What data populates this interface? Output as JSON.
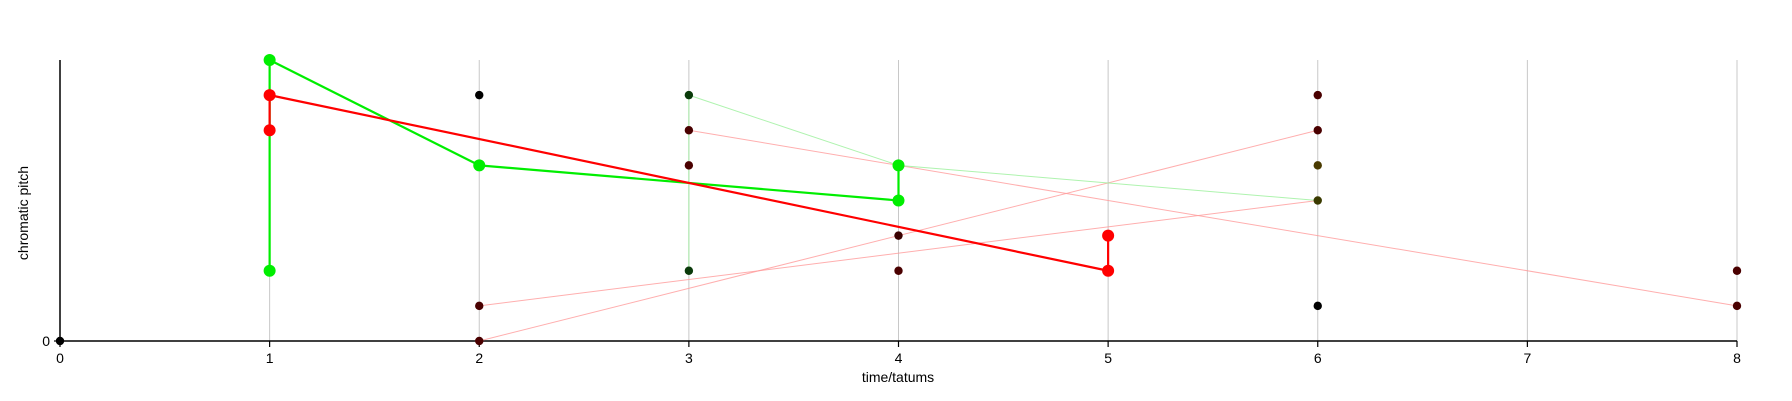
{
  "chart_data": {
    "type": "scatter",
    "xlabel": "time/tatums",
    "ylabel": "chromatic pitch",
    "xlim": [
      0,
      8
    ],
    "ylim": [
      0,
      8
    ],
    "x_ticks": [
      0,
      1,
      2,
      3,
      4,
      5,
      6,
      7,
      8
    ],
    "y_ticks": [
      0
    ],
    "grid": "vertical",
    "colors": {
      "green": "#00ee00",
      "red": "#ff0000",
      "faint_green": "#b8f5b8",
      "faint_red": "#ffbcbc",
      "dark_dot": "#1a0000",
      "dark_red_dot": "#550000",
      "dark_green_dot": "#003300",
      "dark_olive_dot": "#4a3a00"
    },
    "dark_points": [
      {
        "x": 0,
        "y": 0,
        "color": "#000000"
      },
      {
        "x": 2,
        "y": 7,
        "color": "#000000"
      },
      {
        "x": 2,
        "y": 1,
        "color": "#4a0000"
      },
      {
        "x": 2,
        "y": 0,
        "color": "#4a0000"
      },
      {
        "x": 3,
        "y": 7,
        "color": "#0a3a0a"
      },
      {
        "x": 3,
        "y": 6,
        "color": "#4a0000"
      },
      {
        "x": 3,
        "y": 5,
        "color": "#4a0000"
      },
      {
        "x": 3,
        "y": 2,
        "color": "#0a3a0a"
      },
      {
        "x": 4,
        "y": 3,
        "color": "#3a0000"
      },
      {
        "x": 4,
        "y": 2,
        "color": "#4a0000"
      },
      {
        "x": 6,
        "y": 7,
        "color": "#4a0000"
      },
      {
        "x": 6,
        "y": 6,
        "color": "#4a0000"
      },
      {
        "x": 6,
        "y": 5,
        "color": "#4a3a00"
      },
      {
        "x": 6,
        "y": 4,
        "color": "#3a3a00"
      },
      {
        "x": 6,
        "y": 1,
        "color": "#000000"
      },
      {
        "x": 8,
        "y": 2,
        "color": "#4a0000"
      },
      {
        "x": 8,
        "y": 1,
        "color": "#4a0000"
      }
    ],
    "faint_lines": [
      {
        "color": "#ff9a9a",
        "points": [
          [
            2,
            1
          ],
          [
            6,
            4
          ]
        ]
      },
      {
        "color": "#ff9a9a",
        "points": [
          [
            2,
            0
          ],
          [
            6,
            6
          ]
        ]
      },
      {
        "color": "#ff9a9a",
        "points": [
          [
            3,
            6
          ],
          [
            8,
            1
          ]
        ]
      },
      {
        "color": "#9af09a",
        "points": [
          [
            3,
            7
          ],
          [
            4,
            5
          ],
          [
            6,
            4
          ]
        ]
      },
      {
        "color": "#9af09a",
        "points": [
          [
            3,
            7
          ],
          [
            3,
            2
          ]
        ]
      }
    ],
    "series": [
      {
        "color": "#00ee00",
        "segments": [
          [
            [
              1,
              2
            ],
            [
              1,
              8
            ]
          ],
          [
            [
              1,
              8
            ],
            [
              2,
              5
            ],
            [
              4,
              4
            ]
          ],
          [
            [
              4,
              4
            ],
            [
              4,
              5
            ]
          ]
        ],
        "points": [
          [
            1,
            8
          ],
          [
            1,
            2
          ],
          [
            2,
            5
          ],
          [
            4,
            5
          ],
          [
            4,
            4
          ]
        ]
      },
      {
        "color": "#ff0000",
        "segments": [
          [
            [
              1,
              6
            ],
            [
              1,
              7
            ]
          ],
          [
            [
              1,
              7
            ],
            [
              5,
              2
            ]
          ],
          [
            [
              5,
              2
            ],
            [
              5,
              3
            ]
          ]
        ],
        "points": [
          [
            1,
            7
          ],
          [
            1,
            6
          ],
          [
            5,
            3
          ],
          [
            5,
            2
          ]
        ]
      }
    ]
  }
}
